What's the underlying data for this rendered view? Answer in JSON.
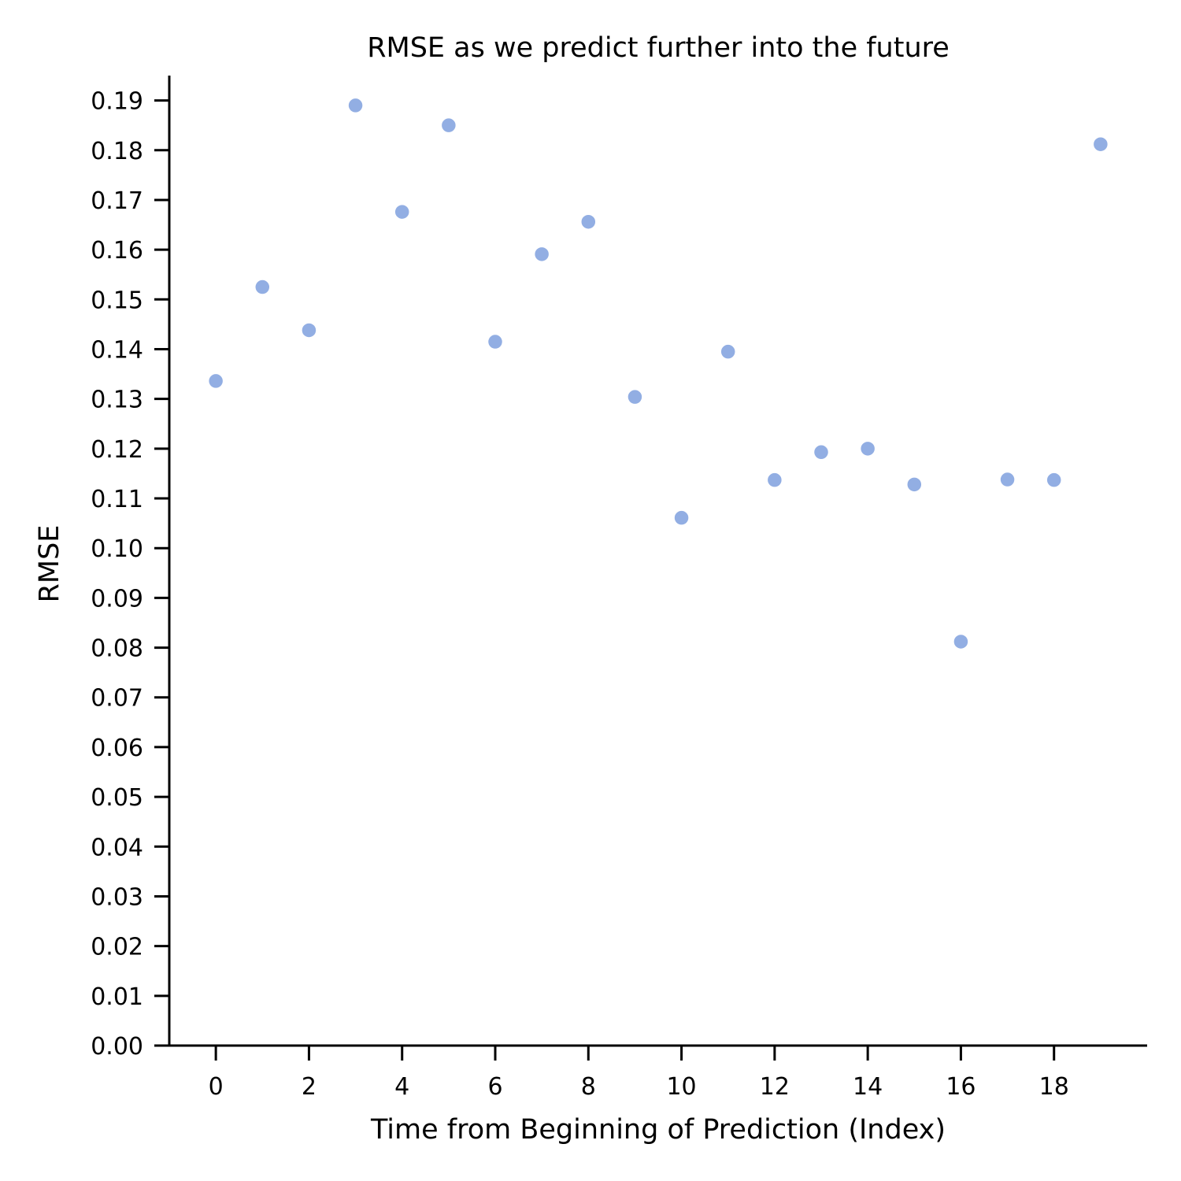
{
  "chart_data": {
    "type": "scatter",
    "title": "RMSE as we predict further into the future",
    "xlabel": "Time from Beginning of Prediction (Index)",
    "ylabel": "RMSE",
    "xlim": [
      -1,
      20
    ],
    "ylim": [
      0,
      0.195
    ],
    "xticks": [
      0,
      2,
      4,
      6,
      8,
      10,
      12,
      14,
      16,
      18
    ],
    "xtick_labels": [
      "0",
      "2",
      "4",
      "6",
      "8",
      "10",
      "12",
      "14",
      "16",
      "18"
    ],
    "yticks": [
      0,
      0.01,
      0.02,
      0.03,
      0.04,
      0.05,
      0.06,
      0.07,
      0.08,
      0.09,
      0.1,
      0.11,
      0.12,
      0.13,
      0.14,
      0.15,
      0.16,
      0.17,
      0.18,
      0.19
    ],
    "ytick_labels": [
      "0.00",
      "0.01",
      "0.02",
      "0.03",
      "0.04",
      "0.05",
      "0.06",
      "0.07",
      "0.08",
      "0.09",
      "0.10",
      "0.11",
      "0.12",
      "0.13",
      "0.14",
      "0.15",
      "0.16",
      "0.17",
      "0.18",
      "0.19"
    ],
    "grid": false,
    "marker_color": "#92aee3",
    "axis_color": "#000000",
    "series": [
      {
        "x": [
          0,
          1,
          2,
          3,
          4,
          5,
          6,
          7,
          8,
          9,
          10,
          11,
          12,
          13,
          14,
          15,
          16,
          17,
          18,
          19
        ],
        "y": [
          0.1336,
          0.1525,
          0.1438,
          0.189,
          0.1676,
          0.185,
          0.1415,
          0.1591,
          0.1656,
          0.1304,
          0.1061,
          0.1395,
          0.1137,
          0.1193,
          0.12,
          0.1128,
          0.0812,
          0.1138,
          0.1137,
          0.1812
        ]
      }
    ]
  }
}
